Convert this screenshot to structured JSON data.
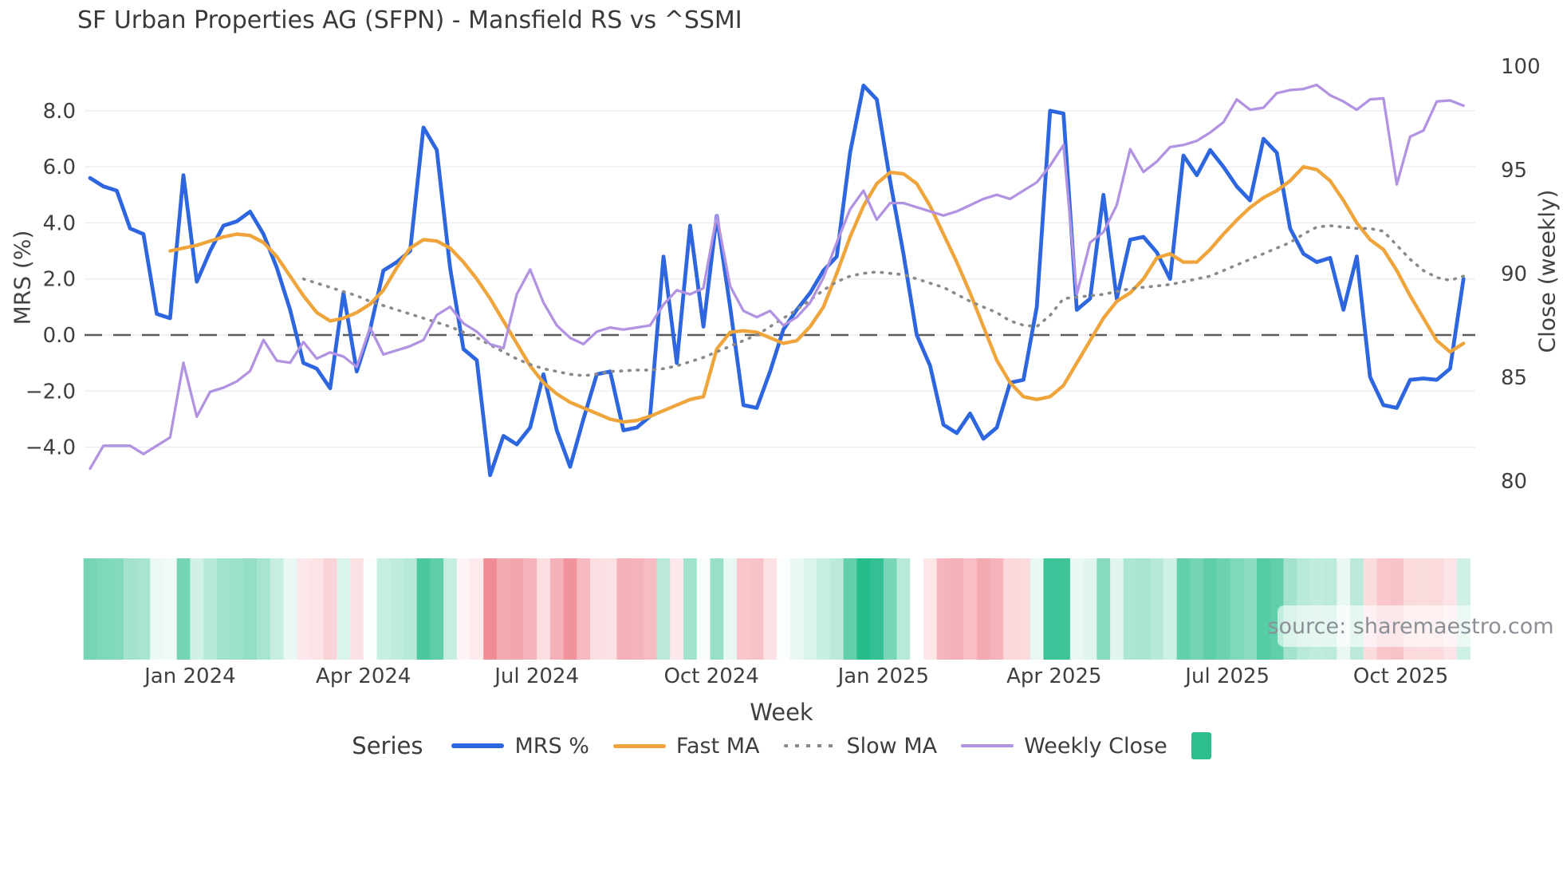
{
  "title": "SF Urban Properties AG (SFPN) - Mansfield RS vs ^SSMI",
  "source_note": "source: sharemaestro.com",
  "axes": {
    "left": {
      "label": "MRS (%)",
      "tick_labels": [
        "8.0",
        "6.0",
        "4.0",
        "2.0",
        "0.0",
        "−2.0",
        "−4.0"
      ],
      "tick_values": [
        8,
        6,
        4,
        2,
        0,
        -2,
        -4
      ]
    },
    "right": {
      "label": "Close (weekly)",
      "tick_labels": [
        "100",
        "95",
        "90",
        "85",
        "80"
      ],
      "tick_values": [
        100,
        95,
        90,
        85,
        80
      ]
    },
    "x": {
      "label": "Week",
      "tick_labels": [
        "Jan 2024",
        "Apr 2024",
        "Jul 2024",
        "Oct 2024",
        "Jan 2025",
        "Apr 2025",
        "Jul 2025",
        "Oct 2025"
      ],
      "tick_weeks": [
        7.5,
        20.5,
        33.5,
        46.6,
        59.5,
        72.3,
        85.3,
        98.3
      ]
    }
  },
  "legend": {
    "series_label": "Series",
    "items": [
      {
        "label": "MRS %",
        "style": "solid",
        "color": "#2d66df",
        "thickness": 6
      },
      {
        "label": "Fast MA",
        "style": "solid",
        "color": "#efa53c",
        "thickness": 5
      },
      {
        "label": "Slow MA",
        "style": "dotted",
        "color": "#8a8a8a",
        "thickness": 4
      },
      {
        "label": "Weekly Close",
        "style": "solid",
        "color": "#b193e2",
        "thickness": 4
      }
    ],
    "heatmap_swatch_color": "#2dbd8e"
  },
  "chart_data": {
    "type": "line",
    "title": "SF Urban Properties AG (SFPN) - Mansfield RS vs ^SSMI",
    "xlabel": "Week",
    "x_unit": "weekly points, Nov 2023 through Nov 2025",
    "n_weeks": 104,
    "x_tick_labels": [
      "Jan 2024",
      "Apr 2024",
      "Jul 2024",
      "Oct 2024",
      "Jan 2025",
      "Apr 2025",
      "Jul 2025",
      "Oct 2025"
    ],
    "left_axis": {
      "label": "MRS (%)",
      "ylim": [
        -6.3,
        10.3
      ],
      "ticks": [
        8,
        6,
        4,
        2,
        0,
        -2,
        -4
      ]
    },
    "right_axis": {
      "label": "Close (weekly)",
      "ylim": [
        78.6,
        100.9
      ],
      "ticks": [
        100,
        95,
        90,
        85,
        80
      ]
    },
    "zero_line": {
      "axis": "left",
      "value": 0,
      "style": "dashed",
      "color": "#5a5a5a"
    },
    "grid": "horizontal only, light gray",
    "legend_position": "bottom center",
    "series": [
      {
        "name": "MRS %",
        "axis": "left",
        "color": "#2d66df",
        "style": "solid",
        "values": [
          5.6,
          5.3,
          5.15,
          3.8,
          3.6,
          0.75,
          0.6,
          5.7,
          1.9,
          3.0,
          3.9,
          4.05,
          4.4,
          3.6,
          2.4,
          0.9,
          -1.0,
          -1.2,
          -1.9,
          1.5,
          -1.3,
          0.2,
          2.3,
          2.6,
          3.0,
          7.4,
          6.6,
          2.4,
          -0.5,
          -0.9,
          -5.0,
          -3.6,
          -3.9,
          -3.3,
          -1.4,
          -3.4,
          -4.7,
          -3.0,
          -1.4,
          -1.3,
          -3.4,
          -3.3,
          -2.9,
          2.8,
          -1.0,
          3.9,
          0.3,
          4.25,
          1.0,
          -2.5,
          -2.6,
          -1.3,
          0.2,
          0.9,
          1.5,
          2.3,
          2.8,
          6.5,
          8.9,
          8.4,
          5.5,
          2.9,
          0.0,
          -1.1,
          -3.2,
          -3.5,
          -2.8,
          -3.7,
          -3.3,
          -1.7,
          -1.6,
          1.0,
          8.0,
          7.9,
          0.9,
          1.3,
          5.0,
          1.3,
          3.4,
          3.5,
          2.95,
          2.0,
          6.4,
          5.7,
          6.6,
          6.0,
          5.3,
          4.8,
          7.0,
          6.5,
          3.8,
          2.9,
          2.6,
          2.75,
          0.9,
          2.8,
          -1.5,
          -2.5,
          -2.6,
          -1.6,
          -1.55,
          -1.6,
          -1.2,
          2.0
        ]
      },
      {
        "name": "Fast MA",
        "axis": "left",
        "color": "#efa53c",
        "style": "solid",
        "values": [
          null,
          null,
          null,
          null,
          null,
          null,
          3.0,
          3.1,
          3.2,
          3.35,
          3.5,
          3.6,
          3.55,
          3.3,
          2.8,
          2.1,
          1.4,
          0.8,
          0.5,
          0.6,
          0.8,
          1.1,
          1.6,
          2.4,
          3.1,
          3.4,
          3.35,
          3.1,
          2.6,
          2.0,
          1.3,
          0.5,
          -0.3,
          -1.1,
          -1.7,
          -2.1,
          -2.4,
          -2.6,
          -2.8,
          -3.0,
          -3.1,
          -3.05,
          -2.9,
          -2.7,
          -2.5,
          -2.3,
          -2.2,
          -0.5,
          0.1,
          0.15,
          0.1,
          -0.1,
          -0.3,
          -0.2,
          0.3,
          1.0,
          2.2,
          3.5,
          4.6,
          5.4,
          5.8,
          5.75,
          5.4,
          4.6,
          3.6,
          2.6,
          1.5,
          0.3,
          -0.9,
          -1.7,
          -2.2,
          -2.3,
          -2.2,
          -1.8,
          -1.0,
          -0.2,
          0.6,
          1.2,
          1.5,
          2.0,
          2.75,
          2.9,
          2.6,
          2.6,
          3.05,
          3.6,
          4.1,
          4.55,
          4.9,
          5.15,
          5.5,
          6.0,
          5.9,
          5.5,
          4.8,
          4.0,
          3.4,
          3.05,
          2.3,
          1.4,
          0.6,
          -0.2,
          -0.6,
          -0.3
        ]
      },
      {
        "name": "Slow MA",
        "axis": "left",
        "color": "#8a8a8a",
        "style": "dotted",
        "values": [
          null,
          null,
          null,
          null,
          null,
          null,
          null,
          null,
          null,
          null,
          null,
          null,
          null,
          null,
          null,
          null,
          2.0,
          1.85,
          1.7,
          1.55,
          1.4,
          1.2,
          1.05,
          0.9,
          0.75,
          0.6,
          0.45,
          0.3,
          0.1,
          -0.1,
          -0.35,
          -0.6,
          -0.85,
          -1.05,
          -1.2,
          -1.3,
          -1.4,
          -1.45,
          -1.4,
          -1.3,
          -1.28,
          -1.25,
          -1.25,
          -1.2,
          -1.1,
          -0.95,
          -0.8,
          -0.6,
          -0.4,
          -0.2,
          0.0,
          0.3,
          0.6,
          0.9,
          1.25,
          1.6,
          1.9,
          2.1,
          2.2,
          2.25,
          2.2,
          2.15,
          2.0,
          1.85,
          1.7,
          1.45,
          1.2,
          1.0,
          0.8,
          0.5,
          0.35,
          0.3,
          0.7,
          1.3,
          1.35,
          1.4,
          1.45,
          1.55,
          1.65,
          1.7,
          1.75,
          1.8,
          1.9,
          2.0,
          2.1,
          2.3,
          2.5,
          2.7,
          2.9,
          3.1,
          3.3,
          3.6,
          3.85,
          3.9,
          3.85,
          3.8,
          3.8,
          3.7,
          3.2,
          2.7,
          2.3,
          2.05,
          1.95,
          2.1
        ]
      },
      {
        "name": "Weekly Close",
        "axis": "right",
        "color": "#b193e2",
        "style": "solid",
        "values": [
          80.6,
          81.7,
          81.7,
          81.7,
          81.3,
          81.7,
          82.1,
          85.7,
          83.1,
          84.3,
          84.5,
          84.8,
          85.3,
          86.8,
          85.8,
          85.7,
          86.7,
          85.9,
          86.2,
          86.0,
          85.5,
          87.4,
          86.1,
          86.3,
          86.5,
          86.8,
          88.0,
          88.4,
          87.6,
          87.2,
          86.6,
          86.4,
          89.0,
          90.2,
          88.6,
          87.5,
          86.9,
          86.6,
          87.2,
          87.4,
          87.3,
          87.4,
          87.5,
          88.5,
          89.2,
          89.0,
          89.3,
          92.8,
          89.4,
          88.2,
          87.9,
          88.2,
          87.5,
          87.9,
          88.6,
          89.8,
          91.5,
          93.1,
          94.0,
          92.6,
          93.4,
          93.4,
          93.2,
          93.0,
          92.8,
          93.0,
          93.3,
          93.6,
          93.8,
          93.6,
          94.0,
          94.4,
          95.2,
          96.2,
          89.0,
          91.5,
          92.0,
          93.3,
          96.0,
          94.9,
          95.4,
          96.1,
          96.2,
          96.4,
          96.8,
          97.3,
          98.4,
          97.9,
          98.0,
          98.7,
          98.85,
          98.9,
          99.1,
          98.6,
          98.3,
          97.9,
          98.4,
          98.45,
          94.3,
          96.6,
          96.9,
          98.3,
          98.35,
          98.1
        ]
      }
    ],
    "heatmap_strip": {
      "description": "one column per week under the chart, colored by MRS % sign and magnitude",
      "positive_color": "#24bc8c",
      "negative_color": "#f08c96",
      "full_green_at": 9.0,
      "full_red_at": 5.0
    }
  }
}
